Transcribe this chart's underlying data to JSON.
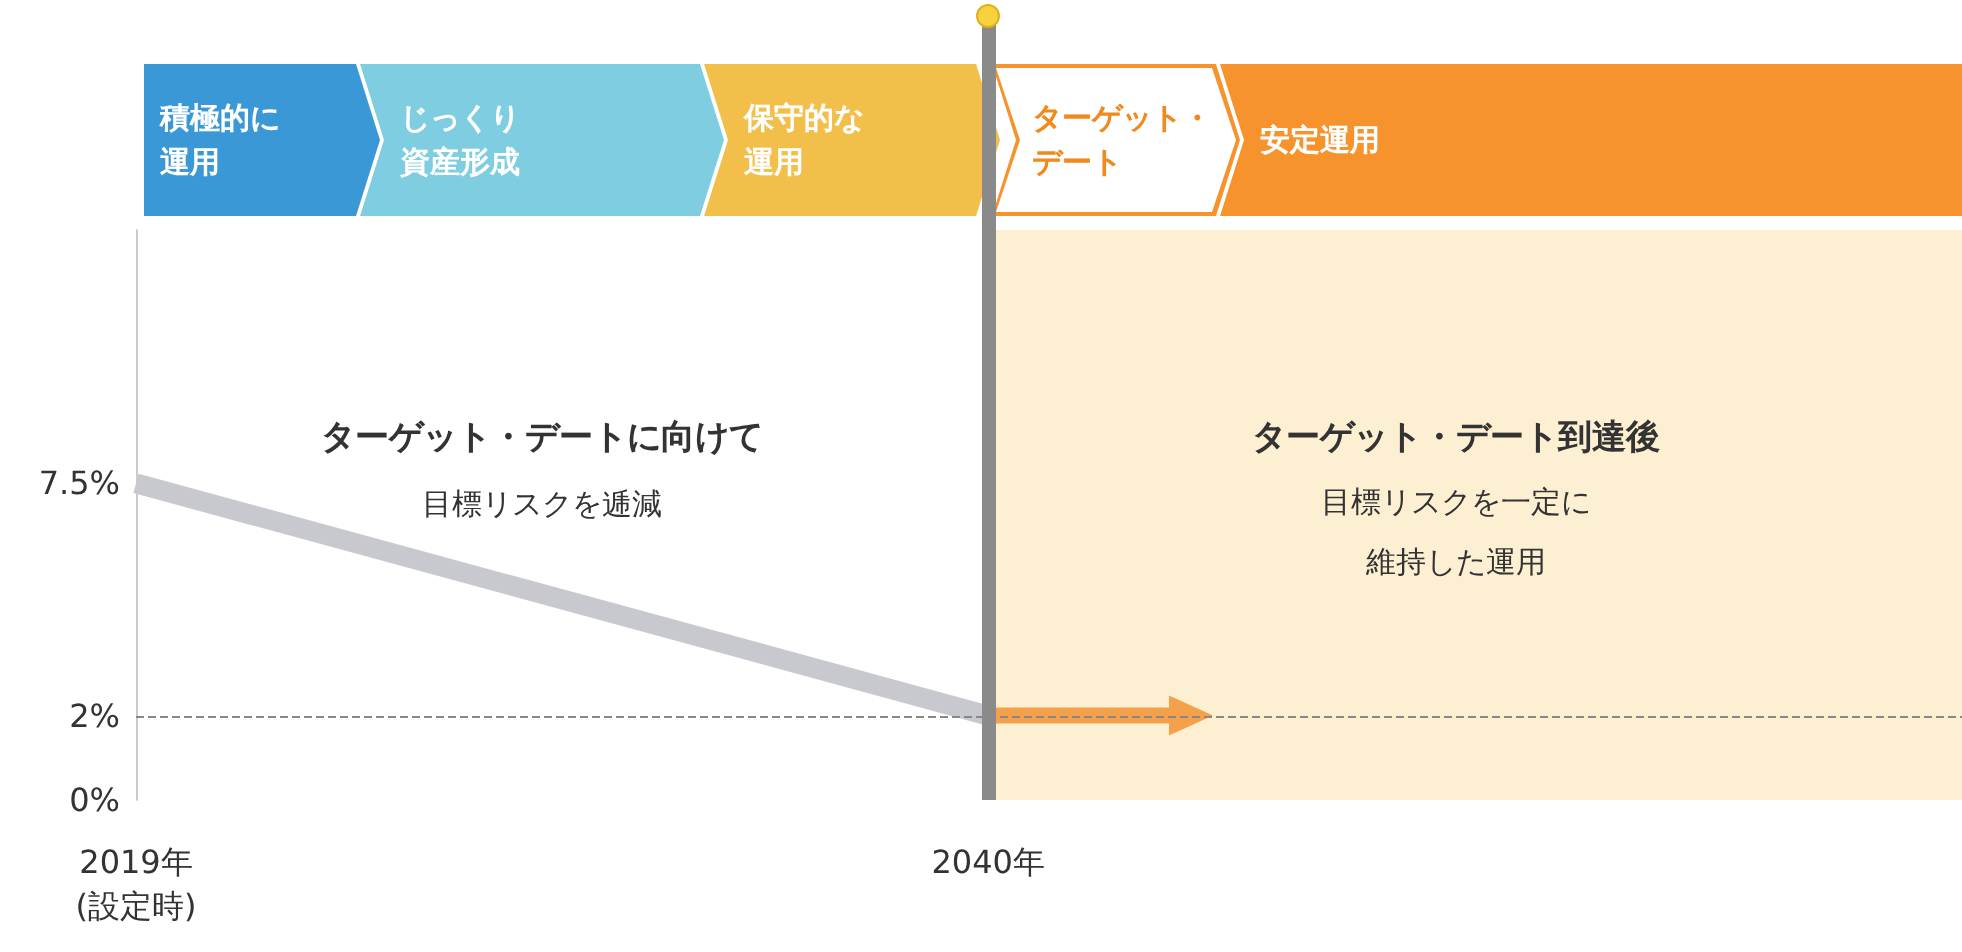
{
  "chart_data": {
    "type": "line",
    "x": [
      2019,
      2040
    ],
    "series": [
      {
        "color": "#c8c9ce",
        "values": [
          7.5,
          2
        ]
      },
      {
        "color": "#f5a04a",
        "x": [
          2040,
          2045
        ],
        "values": [
          2,
          2
        ]
      }
    ],
    "xlim": [
      2019,
      2064
    ],
    "xticks": [
      {
        "value": 2019,
        "label": "2019年\n(設定時)"
      },
      {
        "value": 2040,
        "label": "2040年"
      }
    ],
    "ylim": [
      0,
      13.5
    ],
    "yticks": [
      {
        "value": 0,
        "label": "0%"
      },
      {
        "value": 2,
        "label": "2%"
      },
      {
        "value": 7.5,
        "label": "7.5%"
      }
    ],
    "ref_lines": [
      {
        "axis": "y",
        "value": 2,
        "label": null,
        "color": "#888888",
        "line_style": "dashed"
      },
      {
        "axis": "x",
        "value": 2040,
        "label": null,
        "color": "#8a8a8a",
        "line_style": "solid"
      }
    ],
    "bands": [
      {
        "axis": "x",
        "from": 2040,
        "to": 2064,
        "label": null,
        "color": "#fdf0d2"
      }
    ],
    "annotations": [
      "積極的に運用",
      "じっくり資産形成",
      "保守的な運用",
      "ターゲット・デート",
      "安定運用",
      "ターゲット・デートに向けて",
      "目標リスクを逓減",
      "ターゲット・デート到達後",
      "目標リスクを一定に維持した運用"
    ],
    "grid": false
  }
}
